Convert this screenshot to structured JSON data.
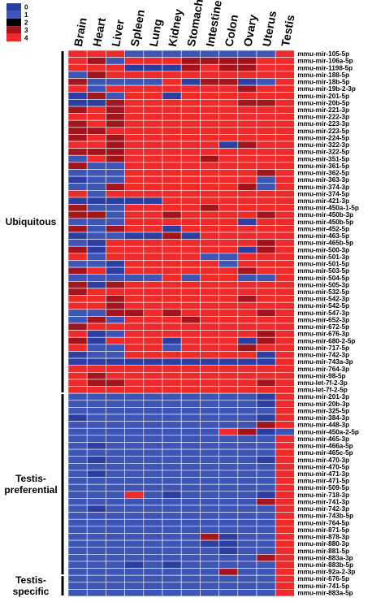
{
  "chart_data": {
    "type": "heatmap",
    "title": "",
    "columns": [
      "Brain",
      "Heart",
      "Liver",
      "Spleen",
      "Lung",
      "Kidney",
      "Stomach",
      "Intestine",
      "Colon",
      "Ovary",
      "Uterus",
      "Testis"
    ],
    "rows": [
      "mmu-mir-105-5p",
      "mmu-mir-106a-5p",
      "mmu-mir-1198-5p",
      "mmu-mir-188-5p",
      "mmu-mir-18b-5p",
      "mmu-mir-19b-2-3p",
      "mmu-mir-201-5p",
      "mmu-mir-20b-5p",
      "mmu-mir-221-3p",
      "mmu-mir-222-3p",
      "mmu-mir-223-3p",
      "mmu-mir-223-5p",
      "mmu-mir-224-5p",
      "mmu-mir-322-3p",
      "mmu-mir-322-5p",
      "mmu-mir-351-5p",
      "mmu-mir-361-5p",
      "mmu-mir-362-5p",
      "mmu-mir-363-3p",
      "mmu-mir-374-3p",
      "mmu-mir-374-5p",
      "mmu-mir-421-3p",
      "mmu-mir-450a-1-5p",
      "mmu-mir-450b-3p",
      "mmu-mir-450b-5p",
      "mmu-mir-452-5p",
      "mmu-mir-463-5p",
      "mmu-mir-465b-5p",
      "mmu-mir-500-3p",
      "mmu-mir-501-3p",
      "mmu-mir-501-5p",
      "mmu-mir-503-5p",
      "mmu-mir-504-5p",
      "mmu-mir-505-3p",
      "mmu-mir-532-5p",
      "mmu-mir-542-3p",
      "mmu-mir-542-5p",
      "mmu-mir-547-3p",
      "mmu-mir-652-3p",
      "mmu-mir-672-5p",
      "mmu-mir-676-3p",
      "mmu-mir-680-2-5p",
      "mmu-mir-717-5p",
      "mmu-mir-742-3p",
      "mmu-mir-743a-3p",
      "mmu-mir-764-3p",
      "mmu-mir-98-5p",
      "mmu-let-7f-2-3p",
      "mmu-let-7f-2-5p",
      "mmu-mir-201-3p",
      "mmu-mir-20b-3p",
      "mmu-mir-325-5p",
      "mmu-mir-384-3p",
      "mmu-mir-448-3p",
      "mmu-mir-450a-2-5p",
      "mmu-mir-465-3p",
      "mmu-mir-466a-5p",
      "mmu-mir-465c-5p",
      "mmu-mir-470-3p",
      "mmu-mir-470-5p",
      "mmu-mir-471-3p",
      "mmu-mir-471-5p",
      "mmu-mir-509-5p",
      "mmu-mir-718-3p",
      "mmu-mir-741-3p",
      "mmu-mir-742-3p",
      "mmu-mir-743b-5p",
      "mmu-mir-764-5p",
      "mmu-mir-871-5p",
      "mmu-mir-878-3p",
      "mmu-mir-880-3p",
      "mmu-mir-881-5p",
      "mmu-mir-883a-3p",
      "mmu-mir-883b-5p",
      "mmu-mir-92a-2-3p",
      "mmu-mir-676-5p",
      "mmu-mir-741-5p",
      "mmu-mir-883a-5p"
    ],
    "values": [
      [
        4,
        4,
        4,
        1,
        1,
        1,
        1,
        1,
        1,
        1,
        1,
        4
      ],
      [
        4,
        3,
        1,
        4,
        4,
        4,
        3,
        3,
        3,
        3,
        4,
        4
      ],
      [
        4,
        4,
        4,
        0,
        0,
        0,
        3,
        4,
        3,
        3,
        4,
        4
      ],
      [
        1,
        3,
        4,
        4,
        4,
        4,
        4,
        4,
        4,
        4,
        4,
        4
      ],
      [
        3,
        1,
        1,
        1,
        1,
        4,
        0,
        3,
        3,
        0,
        1,
        4
      ],
      [
        4,
        1,
        4,
        4,
        4,
        4,
        4,
        4,
        4,
        3,
        4,
        4
      ],
      [
        0,
        3,
        1,
        4,
        4,
        0,
        4,
        4,
        4,
        4,
        4,
        4
      ],
      [
        0,
        0,
        3,
        4,
        4,
        4,
        4,
        4,
        4,
        3,
        3,
        4
      ],
      [
        3,
        4,
        3,
        4,
        4,
        4,
        4,
        4,
        4,
        4,
        4,
        4
      ],
      [
        4,
        4,
        3,
        4,
        4,
        4,
        4,
        4,
        4,
        4,
        4,
        4
      ],
      [
        3,
        4,
        3,
        4,
        4,
        4,
        4,
        4,
        4,
        4,
        4,
        4
      ],
      [
        3,
        3,
        4,
        4,
        4,
        4,
        4,
        4,
        4,
        4,
        4,
        4
      ],
      [
        3,
        4,
        3,
        4,
        4,
        4,
        4,
        4,
        4,
        4,
        4,
        4
      ],
      [
        4,
        4,
        3,
        4,
        4,
        4,
        4,
        4,
        0,
        3,
        4,
        4
      ],
      [
        3,
        3,
        3,
        4,
        4,
        4,
        4,
        4,
        4,
        4,
        4,
        4
      ],
      [
        1,
        4,
        3,
        4,
        4,
        4,
        4,
        3,
        4,
        4,
        4,
        4
      ],
      [
        3,
        1,
        1,
        4,
        4,
        4,
        4,
        4,
        4,
        4,
        4,
        4
      ],
      [
        1,
        1,
        1,
        4,
        4,
        4,
        4,
        4,
        4,
        4,
        3,
        4
      ],
      [
        0,
        1,
        1,
        4,
        4,
        4,
        4,
        4,
        4,
        4,
        1,
        4
      ],
      [
        1,
        1,
        3,
        4,
        4,
        4,
        4,
        4,
        4,
        3,
        1,
        4
      ],
      [
        4,
        1,
        4,
        4,
        4,
        4,
        4,
        4,
        4,
        4,
        4,
        4
      ],
      [
        0,
        0,
        0,
        0,
        0,
        4,
        4,
        4,
        4,
        4,
        4,
        4
      ],
      [
        3,
        1,
        1,
        4,
        4,
        4,
        4,
        3,
        4,
        4,
        4,
        4
      ],
      [
        3,
        3,
        1,
        4,
        4,
        3,
        4,
        4,
        4,
        4,
        3,
        4
      ],
      [
        1,
        1,
        1,
        4,
        4,
        4,
        4,
        4,
        4,
        0,
        4,
        4
      ],
      [
        3,
        1,
        3,
        4,
        4,
        0,
        4,
        4,
        4,
        4,
        4,
        4
      ],
      [
        0,
        1,
        1,
        0,
        0,
        3,
        0,
        4,
        4,
        4,
        4,
        4
      ],
      [
        1,
        0,
        4,
        4,
        4,
        4,
        4,
        4,
        4,
        4,
        3,
        4
      ],
      [
        3,
        0,
        4,
        4,
        4,
        4,
        4,
        4,
        4,
        0,
        3,
        4
      ],
      [
        4,
        1,
        4,
        4,
        4,
        4,
        4,
        1,
        1,
        4,
        4,
        4
      ],
      [
        1,
        1,
        0,
        4,
        4,
        4,
        4,
        4,
        1,
        4,
        4,
        4
      ],
      [
        3,
        4,
        0,
        4,
        4,
        4,
        4,
        4,
        4,
        3,
        4,
        4
      ],
      [
        1,
        1,
        1,
        1,
        1,
        4,
        1,
        4,
        4,
        1,
        1,
        4
      ],
      [
        3,
        0,
        3,
        4,
        4,
        4,
        4,
        4,
        4,
        4,
        4,
        4
      ],
      [
        3,
        4,
        4,
        4,
        4,
        4,
        4,
        4,
        4,
        4,
        4,
        4
      ],
      [
        4,
        4,
        3,
        4,
        4,
        4,
        4,
        4,
        4,
        3,
        4,
        4
      ],
      [
        4,
        4,
        3,
        4,
        4,
        4,
        4,
        4,
        4,
        4,
        4,
        4
      ],
      [
        1,
        1,
        3,
        3,
        4,
        3,
        4,
        4,
        4,
        4,
        3,
        4
      ],
      [
        1,
        3,
        1,
        4,
        4,
        4,
        3,
        4,
        4,
        4,
        4,
        4
      ],
      [
        3,
        4,
        4,
        4,
        4,
        4,
        4,
        4,
        4,
        4,
        4,
        4
      ],
      [
        4,
        0,
        1,
        4,
        4,
        4,
        4,
        4,
        4,
        4,
        3,
        4
      ],
      [
        3,
        0,
        4,
        4,
        4,
        0,
        4,
        4,
        4,
        0,
        3,
        4
      ],
      [
        4,
        1,
        1,
        4,
        4,
        1,
        4,
        4,
        4,
        3,
        4,
        4
      ],
      [
        0,
        1,
        1,
        4,
        4,
        4,
        4,
        4,
        4,
        4,
        0,
        4
      ],
      [
        0,
        0,
        0,
        0,
        0,
        0,
        0,
        0,
        0,
        0,
        0,
        4
      ],
      [
        4,
        4,
        4,
        4,
        4,
        4,
        4,
        4,
        4,
        4,
        4,
        4
      ],
      [
        4,
        3,
        4,
        4,
        4,
        4,
        4,
        4,
        4,
        4,
        4,
        4
      ],
      [
        4,
        3,
        3,
        4,
        4,
        4,
        4,
        4,
        4,
        4,
        3,
        4
      ],
      [
        4,
        4,
        4,
        4,
        4,
        4,
        4,
        4,
        4,
        4,
        4,
        4
      ],
      [
        1,
        1,
        1,
        1,
        1,
        1,
        1,
        1,
        1,
        1,
        0,
        4
      ],
      [
        1,
        1,
        1,
        1,
        1,
        1,
        1,
        1,
        1,
        1,
        0,
        4
      ],
      [
        1,
        1,
        1,
        1,
        1,
        1,
        1,
        1,
        1,
        1,
        1,
        4
      ],
      [
        0,
        1,
        1,
        1,
        1,
        1,
        1,
        1,
        1,
        1,
        0,
        4
      ],
      [
        1,
        1,
        1,
        1,
        1,
        1,
        1,
        1,
        1,
        1,
        3,
        4
      ],
      [
        1,
        1,
        1,
        1,
        1,
        1,
        1,
        1,
        4,
        3,
        0,
        1
      ],
      [
        1,
        1,
        1,
        1,
        1,
        1,
        1,
        1,
        1,
        1,
        1,
        4
      ],
      [
        1,
        0,
        1,
        1,
        1,
        1,
        1,
        1,
        1,
        1,
        1,
        4
      ],
      [
        1,
        1,
        1,
        1,
        1,
        1,
        1,
        1,
        1,
        1,
        1,
        4
      ],
      [
        1,
        0,
        1,
        1,
        1,
        1,
        1,
        1,
        1,
        1,
        0,
        4
      ],
      [
        1,
        1,
        1,
        1,
        1,
        1,
        1,
        1,
        1,
        1,
        1,
        4
      ],
      [
        1,
        0,
        1,
        1,
        1,
        1,
        1,
        1,
        1,
        1,
        1,
        4
      ],
      [
        1,
        1,
        1,
        1,
        1,
        1,
        1,
        1,
        1,
        1,
        1,
        4
      ],
      [
        1,
        1,
        1,
        1,
        1,
        1,
        1,
        1,
        1,
        1,
        1,
        4
      ],
      [
        1,
        1,
        1,
        4,
        1,
        0,
        1,
        1,
        1,
        1,
        0,
        4
      ],
      [
        1,
        1,
        1,
        1,
        1,
        1,
        1,
        1,
        1,
        1,
        3,
        4
      ],
      [
        1,
        0,
        1,
        1,
        1,
        1,
        1,
        1,
        1,
        1,
        1,
        4
      ],
      [
        1,
        1,
        1,
        1,
        1,
        1,
        1,
        1,
        1,
        1,
        1,
        4
      ],
      [
        1,
        1,
        1,
        1,
        1,
        1,
        1,
        1,
        1,
        1,
        1,
        4
      ],
      [
        1,
        1,
        1,
        1,
        1,
        1,
        1,
        1,
        1,
        1,
        1,
        4
      ],
      [
        1,
        1,
        1,
        1,
        1,
        1,
        1,
        3,
        0,
        1,
        1,
        4
      ],
      [
        1,
        1,
        1,
        1,
        1,
        1,
        1,
        0,
        0,
        1,
        1,
        4
      ],
      [
        1,
        1,
        1,
        1,
        1,
        1,
        1,
        1,
        0,
        1,
        1,
        4
      ],
      [
        1,
        1,
        1,
        1,
        1,
        1,
        1,
        1,
        1,
        1,
        3,
        4
      ],
      [
        1,
        1,
        1,
        0,
        1,
        0,
        1,
        1,
        1,
        1,
        1,
        4
      ],
      [
        1,
        1,
        1,
        1,
        1,
        1,
        1,
        1,
        3,
        1,
        1,
        4
      ],
      [
        1,
        1,
        1,
        1,
        1,
        1,
        1,
        1,
        1,
        1,
        1,
        4
      ],
      [
        1,
        1,
        1,
        1,
        1,
        1,
        1,
        1,
        1,
        1,
        1,
        4
      ],
      [
        1,
        1,
        1,
        1,
        1,
        1,
        1,
        1,
        1,
        1,
        1,
        4
      ]
    ],
    "scale": {
      "levels": [
        0,
        1,
        2,
        3,
        4
      ],
      "labels": [
        "0",
        "1",
        "2",
        "3",
        "4"
      ],
      "colors": [
        "#2C3FA0",
        "#3D56B6",
        "#000000",
        "#A3151D",
        "#EE2B2A"
      ]
    },
    "groups": [
      {
        "label": "Ubiquitous",
        "start_row": 0,
        "end_row": 48
      },
      {
        "label": "Testis-preferential",
        "start_row": 49,
        "end_row": 74
      },
      {
        "label": "Testis-specific",
        "start_row": 75,
        "end_row": 77
      }
    ],
    "legend_position": "top-left"
  }
}
